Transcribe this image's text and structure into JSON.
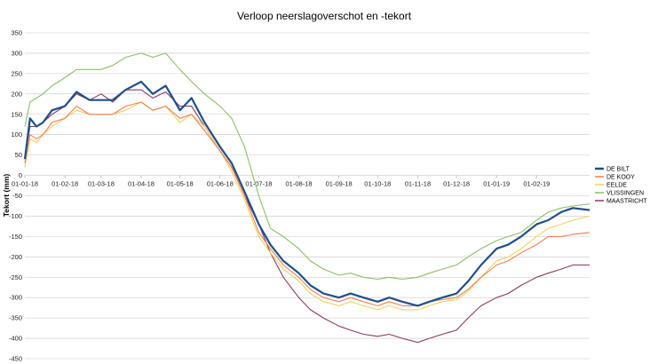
{
  "chart_data": {
    "type": "line",
    "title": "Verloop neerslagoverschot en -tekort",
    "xlabel": "",
    "ylabel": "Tekort (mm)",
    "ylim": [
      -450,
      350
    ],
    "yticks": [
      350,
      300,
      250,
      200,
      150,
      100,
      50,
      0,
      -50,
      -100,
      -150,
      -200,
      -250,
      -300,
      -350,
      -400,
      -450
    ],
    "x_ticks": [
      "01-01-18",
      "01-02-18",
      "01-03-18",
      "01-04-18",
      "01-05-18",
      "01-06-18",
      "01-07-18",
      "01-08-18",
      "01-09-18",
      "01-10-18",
      "01-11-18",
      "01-12-18",
      "01-01-19",
      "01-02-19"
    ],
    "x_start": "2018-01-01",
    "x_end": "2019-03-14",
    "grid": true,
    "legend_position": "right",
    "x": [
      "2018-01-01",
      "2018-01-05",
      "2018-01-10",
      "2018-01-15",
      "2018-01-22",
      "2018-02-01",
      "2018-02-10",
      "2018-02-20",
      "2018-03-01",
      "2018-03-10",
      "2018-03-20",
      "2018-04-01",
      "2018-04-10",
      "2018-04-20",
      "2018-05-01",
      "2018-05-10",
      "2018-05-20",
      "2018-06-01",
      "2018-06-10",
      "2018-06-20",
      "2018-07-01",
      "2018-07-10",
      "2018-07-20",
      "2018-08-01",
      "2018-08-10",
      "2018-08-20",
      "2018-09-01",
      "2018-09-10",
      "2018-09-20",
      "2018-10-01",
      "2018-10-10",
      "2018-10-20",
      "2018-11-01",
      "2018-11-10",
      "2018-11-20",
      "2018-12-01",
      "2018-12-10",
      "2018-12-20",
      "2019-01-01",
      "2019-01-10",
      "2019-01-20",
      "2019-02-01",
      "2019-02-10",
      "2019-02-20",
      "2019-03-01",
      "2019-03-14"
    ],
    "series": [
      {
        "name": "DE BILT",
        "color": "#1f4e8c",
        "width": 2.2,
        "values": [
          40,
          140,
          120,
          130,
          160,
          170,
          205,
          185,
          185,
          185,
          210,
          230,
          200,
          220,
          160,
          190,
          130,
          70,
          30,
          -40,
          -120,
          -170,
          -210,
          -240,
          -270,
          -290,
          -300,
          -290,
          -300,
          -310,
          -300,
          -310,
          -320,
          -310,
          -300,
          -290,
          -260,
          -220,
          -180,
          -170,
          -150,
          -120,
          -110,
          -90,
          -80,
          -85
        ]
      },
      {
        "name": "DE KOOY",
        "color": "#f08050",
        "width": 1.1,
        "values": [
          30,
          100,
          90,
          100,
          130,
          140,
          170,
          150,
          150,
          150,
          170,
          180,
          160,
          170,
          140,
          150,
          110,
          60,
          20,
          -50,
          -140,
          -180,
          -220,
          -250,
          -280,
          -300,
          -310,
          -300,
          -310,
          -320,
          -310,
          -320,
          -320,
          -310,
          -305,
          -300,
          -280,
          -250,
          -220,
          -210,
          -190,
          -170,
          -150,
          -150,
          -145,
          -140
        ]
      },
      {
        "name": "EELDE",
        "color": "#f7d060",
        "width": 1.1,
        "values": [
          20,
          90,
          80,
          100,
          120,
          140,
          160,
          150,
          150,
          150,
          160,
          180,
          160,
          170,
          130,
          150,
          120,
          60,
          10,
          -60,
          -150,
          -190,
          -230,
          -260,
          -290,
          -310,
          -320,
          -310,
          -320,
          -330,
          -320,
          -330,
          -330,
          -320,
          -310,
          -305,
          -285,
          -250,
          -210,
          -200,
          -180,
          -150,
          -130,
          -120,
          -110,
          -100
        ]
      },
      {
        "name": "VLISSINGEN",
        "color": "#8bc065",
        "width": 1.1,
        "values": [
          120,
          180,
          190,
          200,
          220,
          240,
          260,
          260,
          260,
          270,
          290,
          300,
          290,
          300,
          260,
          230,
          200,
          170,
          140,
          70,
          -50,
          -130,
          -150,
          -180,
          -210,
          -230,
          -245,
          -240,
          -250,
          -255,
          -250,
          -255,
          -250,
          -240,
          -230,
          -220,
          -200,
          -180,
          -160,
          -150,
          -140,
          -110,
          -90,
          -80,
          -75,
          -70
        ]
      },
      {
        "name": "MAASTRICHT",
        "color": "#8b3a62",
        "width": 1.1,
        "values": [
          40,
          120,
          120,
          130,
          150,
          170,
          200,
          185,
          200,
          180,
          210,
          210,
          190,
          205,
          170,
          170,
          120,
          60,
          20,
          -50,
          -120,
          -190,
          -250,
          -300,
          -330,
          -350,
          -370,
          -380,
          -390,
          -395,
          -390,
          -400,
          -410,
          -400,
          -390,
          -380,
          -350,
          -320,
          -300,
          -290,
          -270,
          -250,
          -240,
          -230,
          -220,
          -220
        ]
      }
    ]
  }
}
